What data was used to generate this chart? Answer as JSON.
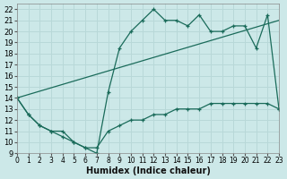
{
  "xlabel": "Humidex (Indice chaleur)",
  "xlim": [
    0,
    23
  ],
  "ylim": [
    9,
    22.5
  ],
  "yticks": [
    9,
    10,
    11,
    12,
    13,
    14,
    15,
    16,
    17,
    18,
    19,
    20,
    21,
    22
  ],
  "xticks": [
    0,
    1,
    2,
    3,
    4,
    5,
    6,
    7,
    8,
    9,
    10,
    11,
    12,
    13,
    14,
    15,
    16,
    17,
    18,
    19,
    20,
    21,
    22,
    23
  ],
  "bg_color": "#cce8e8",
  "grid_color": "#b8d8d8",
  "line_color": "#1a6b5a",
  "series": {
    "upper": {
      "x": [
        0,
        1,
        2,
        3,
        4,
        5,
        6,
        7,
        8,
        9,
        10,
        11,
        12,
        13,
        14,
        15,
        16,
        17,
        18,
        19,
        20,
        21,
        22,
        23
      ],
      "y": [
        14,
        12.5,
        11.5,
        11,
        11,
        10,
        9.5,
        9,
        14.5,
        18.5,
        20,
        21,
        22,
        21,
        21,
        20.5,
        21.5,
        20,
        20,
        20.5,
        20.5,
        18.5,
        21.5,
        13
      ]
    },
    "middle": {
      "x": [
        0,
        23
      ],
      "y": [
        14,
        21
      ]
    },
    "lower": {
      "x": [
        0,
        1,
        2,
        3,
        4,
        5,
        6,
        7,
        8,
        9,
        10,
        11,
        12,
        13,
        14,
        15,
        16,
        17,
        18,
        19,
        20,
        21,
        22,
        23
      ],
      "y": [
        14,
        12.5,
        11.5,
        11,
        10.5,
        10,
        9.5,
        9.5,
        11,
        11.5,
        12,
        12,
        12.5,
        12.5,
        13,
        13,
        13,
        13.5,
        13.5,
        13.5,
        13.5,
        13.5,
        13.5,
        13
      ]
    }
  }
}
